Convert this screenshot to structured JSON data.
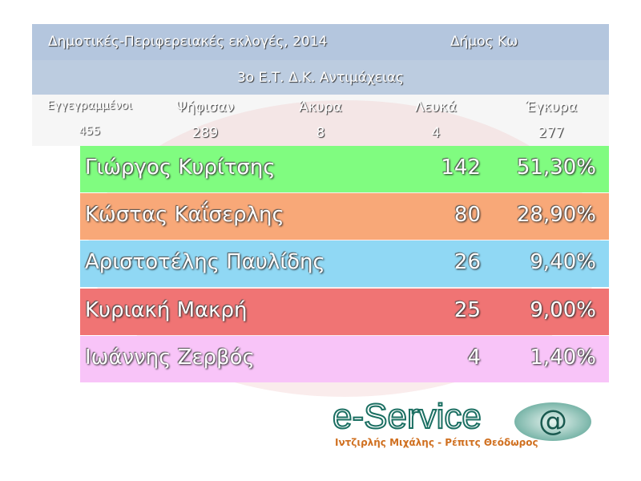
{
  "header": {
    "title": "Δημοτικές-Περιφερειακές εκλογές, 2014",
    "municipality": "Δήμος Κω",
    "subtitle": "3ο Ε.Τ. Δ.Κ. Αντιμάχειας"
  },
  "stats": {
    "labels": [
      "Εγγεγραμμένοι",
      "Ψήφισαν",
      "Άκυρα",
      "Λευκά",
      "Έγκυρα"
    ],
    "values": [
      "455",
      "289",
      "8",
      "4",
      "277"
    ]
  },
  "candidates": [
    {
      "name": "Γιώργος Κυρίτσης",
      "votes": "142",
      "percent": "51,30%",
      "color": "#80fc80"
    },
    {
      "name": "Κώστας Καΐσερλης",
      "votes": "80",
      "percent": "28,90%",
      "color": "#f8a878"
    },
    {
      "name": "Αριστοτέλης Παυλίδης",
      "votes": "26",
      "percent": "9,40%",
      "color": "#90d8f4"
    },
    {
      "name": "Κυριακή Μακρή",
      "votes": "25",
      "percent": "9,00%",
      "color": "#f07474"
    },
    {
      "name": "Ιωάννης Ζερβός",
      "votes": "4",
      "percent": "1,40%",
      "color": "#f8c4f8"
    }
  ],
  "footer": {
    "brand": "e-Service",
    "authors": "Ιντζιρλής Μιχάλης - Ρέπιτς Θεόδωρος",
    "symbol": "@"
  }
}
